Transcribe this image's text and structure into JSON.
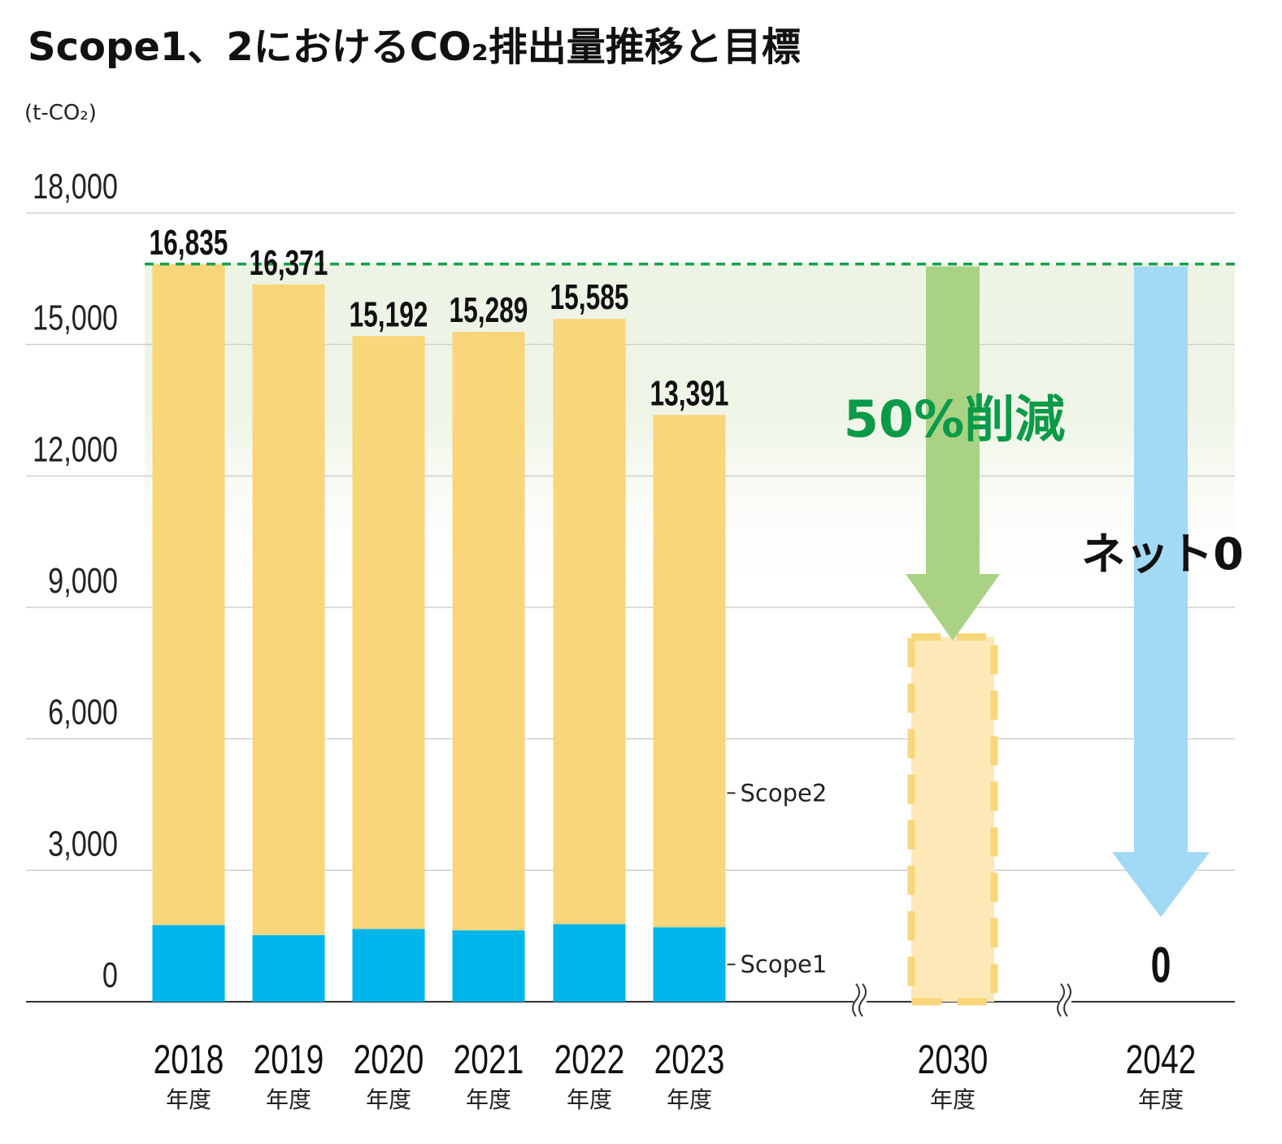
{
  "title": "Scope1、2におけるCO₂排出量推移と目標",
  "unit": "(t-CO₂)",
  "colors": {
    "scope1": "#00b5ea",
    "scope2": "#f9d67a",
    "target_fill": "#fde9b8",
    "target_border": "#f9d67a",
    "reduction_arrow": "#aad284",
    "netzero_arrow": "#a2d9f5",
    "reduction_text": "#0a9a48",
    "dashed_line": "#14a44a",
    "band": "#edf4e4"
  },
  "chart_data": {
    "type": "bar",
    "stacked": true,
    "ylim": [
      0,
      18000
    ],
    "yticks": [
      "18,000",
      "15,000",
      "12,000",
      "9,000",
      "6,000",
      "3,000",
      "0"
    ],
    "ytick_values": [
      18000,
      15000,
      12000,
      9000,
      6000,
      3000,
      0
    ],
    "grid": true,
    "categories": [
      {
        "year": "2018",
        "unit": "年度"
      },
      {
        "year": "2019",
        "unit": "年度"
      },
      {
        "year": "2020",
        "unit": "年度"
      },
      {
        "year": "2021",
        "unit": "年度"
      },
      {
        "year": "2022",
        "unit": "年度"
      },
      {
        "year": "2023",
        "unit": "年度"
      }
    ],
    "series": [
      {
        "name": "Scope1",
        "values": [
          1750,
          1520,
          1660,
          1630,
          1770,
          1700
        ]
      },
      {
        "name": "Scope2",
        "values": [
          15085,
          14851,
          13532,
          13659,
          13815,
          11691
        ]
      }
    ],
    "totals": [
      16835,
      16371,
      15192,
      15289,
      15585,
      13391
    ],
    "total_labels": [
      "16,835",
      "16,371",
      "15,192",
      "15,289",
      "15,585",
      "13,391"
    ],
    "targets": [
      {
        "year": "2030",
        "unit": "年度",
        "value": 8418,
        "label": "50%削減"
      },
      {
        "year": "2042",
        "unit": "年度",
        "value": 0,
        "label": "ネット0",
        "value_label": "0"
      }
    ]
  }
}
